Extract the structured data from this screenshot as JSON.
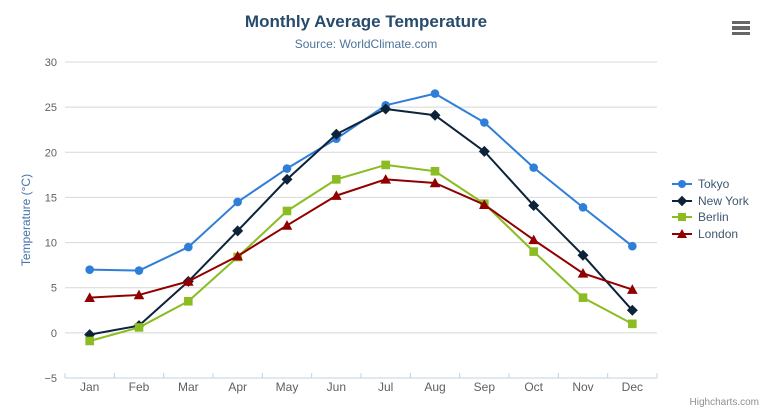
{
  "credits": "Highcharts.com",
  "colors": {
    "background": "#ffffff",
    "title": "#274b6d",
    "subtitle": "#4d759e",
    "axis_label": "#606060",
    "yaxis_title": "#4572a7",
    "grid_line": "#d8d8d8",
    "axis_line": "#c0d0e0",
    "legend_text": "#3e576f",
    "credits": "#909090",
    "menu_icon": "#666666"
  },
  "chart_data": {
    "type": "line",
    "title": "Monthly Average Temperature",
    "subtitle": "Source: WorldClimate.com",
    "categories": [
      "Jan",
      "Feb",
      "Mar",
      "Apr",
      "May",
      "Jun",
      "Jul",
      "Aug",
      "Sep",
      "Oct",
      "Nov",
      "Dec"
    ],
    "series": [
      {
        "name": "Tokyo",
        "color": "#2f7ed8",
        "marker": "circle",
        "values": [
          7.0,
          6.9,
          9.5,
          14.5,
          18.2,
          21.5,
          25.2,
          26.5,
          23.3,
          18.3,
          13.9,
          9.6
        ]
      },
      {
        "name": "New York",
        "color": "#0d233a",
        "marker": "diamond",
        "values": [
          -0.2,
          0.8,
          5.7,
          11.3,
          17.0,
          22.0,
          24.8,
          24.1,
          20.1,
          14.1,
          8.6,
          2.5
        ]
      },
      {
        "name": "Berlin",
        "color": "#8bbc21",
        "marker": "square",
        "values": [
          -0.9,
          0.6,
          3.5,
          8.4,
          13.5,
          17.0,
          18.6,
          17.9,
          14.3,
          9.0,
          3.9,
          1.0
        ]
      },
      {
        "name": "London",
        "color": "#910000",
        "marker": "triangle",
        "values": [
          3.9,
          4.2,
          5.7,
          8.5,
          11.9,
          15.2,
          17.0,
          16.6,
          14.2,
          10.3,
          6.6,
          4.8
        ]
      }
    ],
    "xlabel": "",
    "ylabel": "Temperature (°C)",
    "ylim": [
      -5,
      30
    ],
    "ytick_interval": 5,
    "grid": true,
    "legend_position": "right"
  }
}
